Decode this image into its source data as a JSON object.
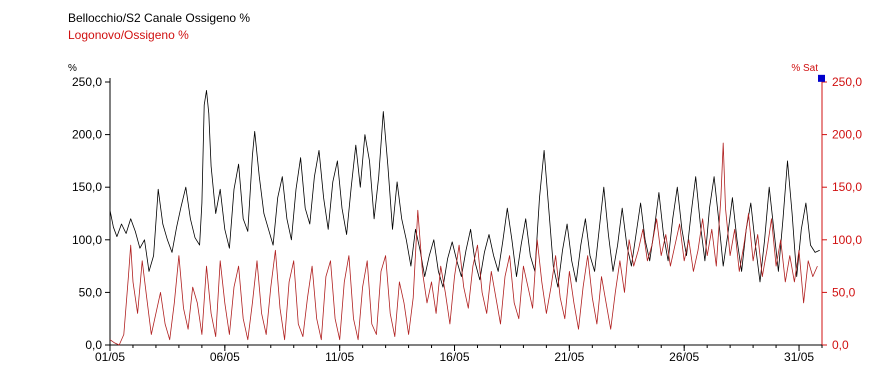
{
  "chart_data": {
    "type": "line",
    "title": "",
    "xlabel": "",
    "left_axis": {
      "label": "%",
      "ticks": [
        "0,0",
        "50,0",
        "100,0",
        "150,0",
        "200,0",
        "250,0"
      ],
      "ylim": [
        0,
        250
      ],
      "color": "#000000"
    },
    "right_axis": {
      "label": "% Sat",
      "ticks": [
        "0,0",
        "50,0",
        "100,0",
        "150,0",
        "200,0",
        "250,0"
      ],
      "ylim": [
        0,
        250
      ],
      "color": "#d01010"
    },
    "x_ticks": [
      "01/05",
      "06/05",
      "11/05",
      "16/05",
      "21/05",
      "26/05",
      "31/05"
    ],
    "xlim": [
      1,
      32
    ],
    "grid": false,
    "legend_position": "top-left",
    "series": [
      {
        "name": "Bellocchio/S2 Canale Ossigeno %",
        "color": "#000000",
        "axis": "left",
        "points": [
          [
            1.0,
            128
          ],
          [
            1.15,
            112
          ],
          [
            1.3,
            103
          ],
          [
            1.5,
            115
          ],
          [
            1.7,
            106
          ],
          [
            1.9,
            120
          ],
          [
            2.1,
            108
          ],
          [
            2.3,
            92
          ],
          [
            2.5,
            100
          ],
          [
            2.7,
            70
          ],
          [
            2.9,
            85
          ],
          [
            3.1,
            148
          ],
          [
            3.3,
            115
          ],
          [
            3.5,
            100
          ],
          [
            3.7,
            88
          ],
          [
            3.9,
            112
          ],
          [
            4.1,
            132
          ],
          [
            4.3,
            150
          ],
          [
            4.5,
            120
          ],
          [
            4.7,
            102
          ],
          [
            4.9,
            95
          ],
          [
            5.0,
            135
          ],
          [
            5.1,
            228
          ],
          [
            5.2,
            242
          ],
          [
            5.3,
            220
          ],
          [
            5.4,
            170
          ],
          [
            5.6,
            125
          ],
          [
            5.8,
            148
          ],
          [
            6.0,
            110
          ],
          [
            6.2,
            92
          ],
          [
            6.4,
            148
          ],
          [
            6.6,
            172
          ],
          [
            6.8,
            120
          ],
          [
            7.0,
            108
          ],
          [
            7.2,
            180
          ],
          [
            7.3,
            203
          ],
          [
            7.5,
            160
          ],
          [
            7.7,
            125
          ],
          [
            7.9,
            110
          ],
          [
            8.1,
            95
          ],
          [
            8.3,
            140
          ],
          [
            8.5,
            160
          ],
          [
            8.7,
            120
          ],
          [
            8.9,
            100
          ],
          [
            9.1,
            148
          ],
          [
            9.3,
            178
          ],
          [
            9.5,
            130
          ],
          [
            9.7,
            115
          ],
          [
            9.9,
            160
          ],
          [
            10.1,
            185
          ],
          [
            10.3,
            140
          ],
          [
            10.5,
            110
          ],
          [
            10.7,
            155
          ],
          [
            10.9,
            175
          ],
          [
            11.1,
            130
          ],
          [
            11.3,
            105
          ],
          [
            11.5,
            150
          ],
          [
            11.7,
            190
          ],
          [
            11.9,
            150
          ],
          [
            12.1,
            200
          ],
          [
            12.3,
            175
          ],
          [
            12.5,
            120
          ],
          [
            12.7,
            160
          ],
          [
            12.9,
            222
          ],
          [
            13.1,
            170
          ],
          [
            13.3,
            110
          ],
          [
            13.5,
            155
          ],
          [
            13.7,
            120
          ],
          [
            13.9,
            100
          ],
          [
            14.1,
            75
          ],
          [
            14.3,
            110
          ],
          [
            14.5,
            90
          ],
          [
            14.7,
            65
          ],
          [
            14.9,
            85
          ],
          [
            15.1,
            100
          ],
          [
            15.3,
            70
          ],
          [
            15.5,
            55
          ],
          [
            15.7,
            82
          ],
          [
            15.9,
            98
          ],
          [
            16.1,
            80
          ],
          [
            16.3,
            65
          ],
          [
            16.5,
            90
          ],
          [
            16.7,
            110
          ],
          [
            16.9,
            78
          ],
          [
            17.1,
            62
          ],
          [
            17.3,
            88
          ],
          [
            17.5,
            105
          ],
          [
            17.7,
            85
          ],
          [
            17.9,
            70
          ],
          [
            18.1,
            98
          ],
          [
            18.3,
            130
          ],
          [
            18.5,
            100
          ],
          [
            18.7,
            65
          ],
          [
            18.9,
            95
          ],
          [
            19.1,
            120
          ],
          [
            19.3,
            85
          ],
          [
            19.5,
            70
          ],
          [
            19.7,
            140
          ],
          [
            19.9,
            185
          ],
          [
            20.1,
            130
          ],
          [
            20.3,
            75
          ],
          [
            20.5,
            55
          ],
          [
            20.7,
            90
          ],
          [
            20.9,
            115
          ],
          [
            21.1,
            80
          ],
          [
            21.3,
            60
          ],
          [
            21.5,
            95
          ],
          [
            21.7,
            120
          ],
          [
            21.9,
            85
          ],
          [
            22.1,
            70
          ],
          [
            22.3,
            110
          ],
          [
            22.5,
            150
          ],
          [
            22.7,
            105
          ],
          [
            22.9,
            70
          ],
          [
            23.1,
            95
          ],
          [
            23.3,
            130
          ],
          [
            23.5,
            95
          ],
          [
            23.7,
            75
          ],
          [
            23.9,
            105
          ],
          [
            24.1,
            135
          ],
          [
            24.3,
            100
          ],
          [
            24.5,
            80
          ],
          [
            24.7,
            110
          ],
          [
            24.9,
            145
          ],
          [
            25.1,
            105
          ],
          [
            25.3,
            80
          ],
          [
            25.5,
            120
          ],
          [
            25.7,
            150
          ],
          [
            25.9,
            110
          ],
          [
            26.1,
            85
          ],
          [
            26.3,
            125
          ],
          [
            26.5,
            160
          ],
          [
            26.7,
            115
          ],
          [
            26.9,
            80
          ],
          [
            27.1,
            130
          ],
          [
            27.3,
            160
          ],
          [
            27.5,
            120
          ],
          [
            27.7,
            75
          ],
          [
            27.9,
            105
          ],
          [
            28.1,
            140
          ],
          [
            28.3,
            100
          ],
          [
            28.5,
            70
          ],
          [
            28.7,
            110
          ],
          [
            28.9,
            135
          ],
          [
            29.1,
            95
          ],
          [
            29.3,
            60
          ],
          [
            29.5,
            100
          ],
          [
            29.7,
            150
          ],
          [
            29.9,
            110
          ],
          [
            30.1,
            70
          ],
          [
            30.3,
            120
          ],
          [
            30.5,
            175
          ],
          [
            30.7,
            125
          ],
          [
            30.9,
            65
          ],
          [
            31.1,
            110
          ],
          [
            31.3,
            135
          ],
          [
            31.5,
            95
          ],
          [
            31.7,
            88
          ],
          [
            31.9,
            90
          ]
        ]
      },
      {
        "name": "Logonovo/Ossigeno %",
        "color": "#b02020",
        "axis": "right",
        "points": [
          [
            1.0,
            5
          ],
          [
            1.2,
            2
          ],
          [
            1.4,
            0
          ],
          [
            1.6,
            10
          ],
          [
            1.8,
            65
          ],
          [
            1.9,
            95
          ],
          [
            2.0,
            60
          ],
          [
            2.2,
            30
          ],
          [
            2.4,
            80
          ],
          [
            2.6,
            45
          ],
          [
            2.8,
            10
          ],
          [
            3.0,
            30
          ],
          [
            3.2,
            50
          ],
          [
            3.4,
            20
          ],
          [
            3.6,
            5
          ],
          [
            3.8,
            40
          ],
          [
            4.0,
            85
          ],
          [
            4.2,
            35
          ],
          [
            4.4,
            15
          ],
          [
            4.6,
            55
          ],
          [
            4.8,
            40
          ],
          [
            5.0,
            10
          ],
          [
            5.2,
            75
          ],
          [
            5.4,
            30
          ],
          [
            5.6,
            8
          ],
          [
            5.8,
            80
          ],
          [
            6.0,
            40
          ],
          [
            6.2,
            10
          ],
          [
            6.4,
            55
          ],
          [
            6.6,
            75
          ],
          [
            6.8,
            25
          ],
          [
            7.0,
            5
          ],
          [
            7.2,
            40
          ],
          [
            7.4,
            80
          ],
          [
            7.6,
            30
          ],
          [
            7.8,
            10
          ],
          [
            8.0,
            55
          ],
          [
            8.2,
            90
          ],
          [
            8.4,
            35
          ],
          [
            8.6,
            5
          ],
          [
            8.8,
            60
          ],
          [
            9.0,
            80
          ],
          [
            9.2,
            20
          ],
          [
            9.4,
            8
          ],
          [
            9.6,
            45
          ],
          [
            9.8,
            75
          ],
          [
            10.0,
            25
          ],
          [
            10.2,
            5
          ],
          [
            10.4,
            65
          ],
          [
            10.6,
            80
          ],
          [
            10.8,
            25
          ],
          [
            11.0,
            5
          ],
          [
            11.2,
            60
          ],
          [
            11.4,
            85
          ],
          [
            11.6,
            25
          ],
          [
            11.8,
            5
          ],
          [
            12.0,
            55
          ],
          [
            12.2,
            80
          ],
          [
            12.4,
            20
          ],
          [
            12.6,
            10
          ],
          [
            12.8,
            70
          ],
          [
            13.0,
            85
          ],
          [
            13.2,
            30
          ],
          [
            13.4,
            8
          ],
          [
            13.6,
            60
          ],
          [
            13.8,
            40
          ],
          [
            14.0,
            10
          ],
          [
            14.2,
            45
          ],
          [
            14.4,
            128
          ],
          [
            14.6,
            70
          ],
          [
            14.8,
            40
          ],
          [
            15.0,
            60
          ],
          [
            15.2,
            30
          ],
          [
            15.4,
            75
          ],
          [
            15.6,
            50
          ],
          [
            15.8,
            20
          ],
          [
            16.0,
            65
          ],
          [
            16.2,
            95
          ],
          [
            16.4,
            55
          ],
          [
            16.6,
            35
          ],
          [
            16.8,
            75
          ],
          [
            17.0,
            95
          ],
          [
            17.2,
            50
          ],
          [
            17.4,
            30
          ],
          [
            17.6,
            70
          ],
          [
            17.8,
            45
          ],
          [
            18.0,
            20
          ],
          [
            18.2,
            65
          ],
          [
            18.4,
            85
          ],
          [
            18.6,
            40
          ],
          [
            18.8,
            25
          ],
          [
            19.0,
            75
          ],
          [
            19.2,
            55
          ],
          [
            19.4,
            35
          ],
          [
            19.6,
            100
          ],
          [
            19.8,
            60
          ],
          [
            20.0,
            30
          ],
          [
            20.2,
            55
          ],
          [
            20.4,
            85
          ],
          [
            20.6,
            45
          ],
          [
            20.8,
            25
          ],
          [
            21.0,
            70
          ],
          [
            21.2,
            40
          ],
          [
            21.4,
            15
          ],
          [
            21.6,
            55
          ],
          [
            21.8,
            85
          ],
          [
            22.0,
            45
          ],
          [
            22.2,
            20
          ],
          [
            22.4,
            65
          ],
          [
            22.6,
            40
          ],
          [
            22.8,
            15
          ],
          [
            23.0,
            50
          ],
          [
            23.2,
            80
          ],
          [
            23.4,
            50
          ],
          [
            23.6,
            100
          ],
          [
            23.8,
            75
          ],
          [
            24.0,
            90
          ],
          [
            24.2,
            110
          ],
          [
            24.4,
            80
          ],
          [
            24.6,
            95
          ],
          [
            24.8,
            120
          ],
          [
            25.0,
            85
          ],
          [
            25.2,
            105
          ],
          [
            25.4,
            75
          ],
          [
            25.6,
            95
          ],
          [
            25.8,
            115
          ],
          [
            26.0,
            80
          ],
          [
            26.2,
            100
          ],
          [
            26.4,
            70
          ],
          [
            26.6,
            90
          ],
          [
            26.8,
            120
          ],
          [
            27.0,
            85
          ],
          [
            27.2,
            110
          ],
          [
            27.4,
            75
          ],
          [
            27.6,
            140
          ],
          [
            27.7,
            192
          ],
          [
            27.8,
            130
          ],
          [
            28.0,
            85
          ],
          [
            28.2,
            110
          ],
          [
            28.4,
            70
          ],
          [
            28.6,
            95
          ],
          [
            28.8,
            125
          ],
          [
            29.0,
            80
          ],
          [
            29.2,
            105
          ],
          [
            29.4,
            65
          ],
          [
            29.6,
            90
          ],
          [
            29.8,
            120
          ],
          [
            30.0,
            75
          ],
          [
            30.2,
            100
          ],
          [
            30.4,
            60
          ],
          [
            30.6,
            85
          ],
          [
            30.8,
            60
          ],
          [
            31.0,
            90
          ],
          [
            31.2,
            40
          ],
          [
            31.4,
            80
          ],
          [
            31.6,
            65
          ],
          [
            31.8,
            75
          ]
        ]
      }
    ],
    "marker": {
      "color": "#0000cc",
      "axis": "right",
      "x": 32,
      "y": 253
    }
  }
}
